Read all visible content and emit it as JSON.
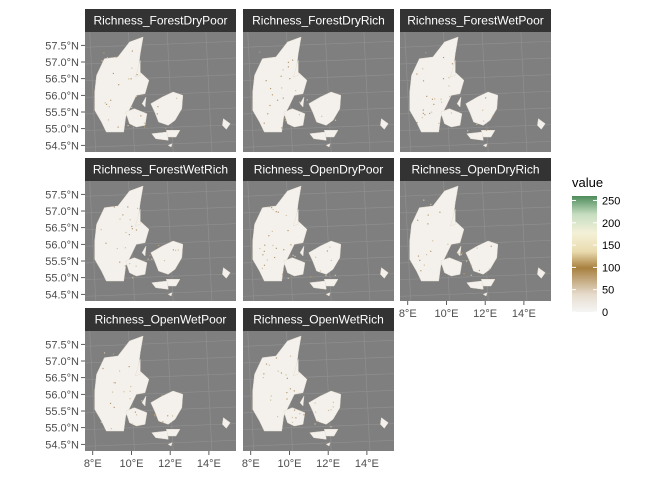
{
  "chart_data": {
    "type": "heatmap",
    "title": "",
    "xlabel": "",
    "ylabel": "",
    "panels": [
      "Richness_ForestDryPoor",
      "Richness_ForestDryRich",
      "Richness_ForestWetPoor",
      "Richness_ForestWetRich",
      "Richness_OpenDryPoor",
      "Richness_OpenDryRich",
      "Richness_OpenWetPoor",
      "Richness_OpenWetRich"
    ],
    "x_ticks": [
      "8°E",
      "10°E",
      "12°E",
      "14°E"
    ],
    "x_tick_values": [
      8,
      10,
      12,
      14
    ],
    "y_ticks": [
      "54.5°N",
      "55.0°N",
      "55.5°N",
      "56.0°N",
      "56.5°N",
      "57.0°N",
      "57.5°N"
    ],
    "y_tick_values": [
      54.5,
      55.0,
      55.5,
      56.0,
      56.5,
      57.0,
      57.5
    ],
    "xlim": [
      7.6,
      15.4
    ],
    "ylim": [
      54.3,
      57.9
    ],
    "grid": true,
    "legend": {
      "title": "value",
      "position": "right",
      "range": [
        0,
        260
      ],
      "labels": [
        "250",
        "200",
        "150",
        "100",
        "50",
        "0"
      ],
      "label_values": [
        250,
        200,
        150,
        100,
        50,
        0
      ],
      "colors": [
        "#f5f5f5",
        "#efe6d6",
        "#a8803f",
        "#e7d9a9",
        "#f4f1d8",
        "#c7dec1",
        "#4d8c5b"
      ]
    },
    "colors": {
      "panel_background": "#7f7f7f",
      "grid": "#8f8f8f",
      "strip_background": "#333333",
      "land": "#f4f1ec"
    }
  }
}
